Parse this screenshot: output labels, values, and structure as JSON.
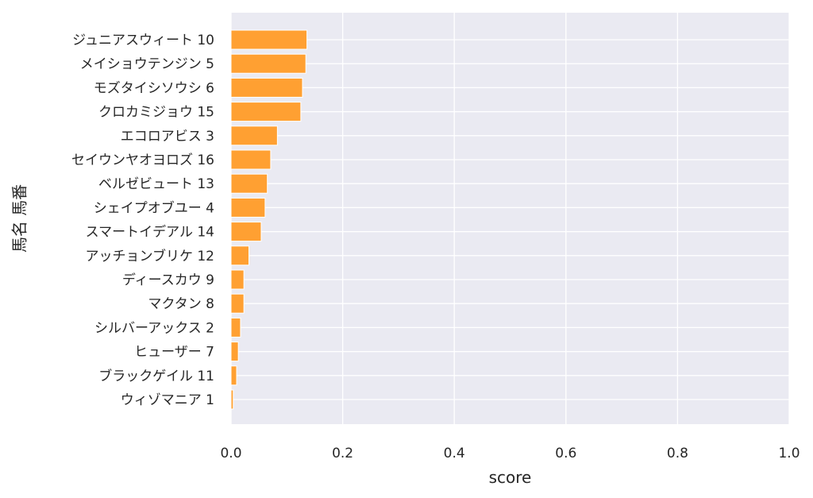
{
  "chart_data": {
    "type": "bar",
    "orientation": "horizontal",
    "categories": [
      "ジュニアスウィート 10",
      "メイショウテンジン 5",
      "モズタイシソウシ 6",
      "クロカミジョウ 15",
      "エコロアビス 3",
      "セイウンヤオヨロズ 16",
      "ベルゼビュート 13",
      "シェイプオブユー 4",
      "スマートイデアル 14",
      "アッチョンブリケ 12",
      "ディースカウ 9",
      "マクタン 8",
      "シルバーアックス 2",
      "ヒューザー 7",
      "ブラックゲイル 11",
      "ウィゾマニア 1"
    ],
    "values": [
      0.136,
      0.134,
      0.128,
      0.125,
      0.083,
      0.071,
      0.065,
      0.061,
      0.054,
      0.032,
      0.023,
      0.023,
      0.017,
      0.013,
      0.01,
      0.004
    ],
    "xlabel": "score",
    "ylabel": "馬名 馬番",
    "xlim": [
      0,
      1.0
    ],
    "xticks": [
      "0.0",
      "0.2",
      "0.4",
      "0.6",
      "0.8",
      "1.0"
    ],
    "grid": true,
    "colors": {
      "bar": "#ffa032",
      "bar_edge": "#ffffff",
      "plot_background": "#eaeaf2",
      "grid": "#ffffff",
      "text": "#262626"
    }
  }
}
